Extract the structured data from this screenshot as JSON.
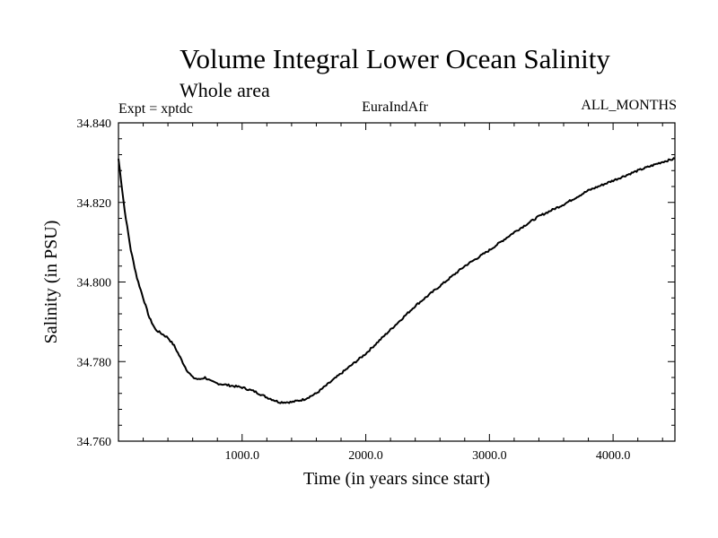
{
  "chart_data": {
    "type": "line",
    "title": "Volume Integral Lower Ocean Salinity",
    "subtitle": "Whole area",
    "left_label": "Expt = xptdc",
    "center_label": "EuraIndAfr",
    "right_label": "ALL_MONTHS",
    "xlabel": "Time (in years since start)",
    "ylabel": "Salinity (in PSU)",
    "xlim": [
      0,
      4500
    ],
    "ylim": [
      34.76,
      34.84
    ],
    "x_ticks": [
      1000,
      2000,
      3000,
      4000
    ],
    "x_tick_labels": [
      "1000.0",
      "2000.0",
      "3000.0",
      "4000.0"
    ],
    "y_ticks": [
      34.76,
      34.78,
      34.8,
      34.82,
      34.84
    ],
    "y_tick_labels": [
      "34.760",
      "34.780",
      "34.800",
      "34.820",
      "34.840"
    ],
    "grid": false,
    "series": [
      {
        "x": [
          0,
          50,
          100,
          150,
          200,
          250,
          300,
          350,
          400,
          450,
          500,
          550,
          600,
          650,
          700,
          750,
          800,
          900,
          1000,
          1100,
          1200,
          1300,
          1400,
          1500,
          1600,
          1700,
          1800,
          2000,
          2200,
          2400,
          2600,
          2800,
          3000,
          3200,
          3400,
          3600,
          3800,
          4000,
          4200,
          4400,
          4500
        ],
        "y": [
          34.831,
          34.818,
          34.808,
          34.801,
          34.796,
          34.791,
          34.788,
          34.787,
          34.786,
          34.784,
          34.781,
          34.778,
          34.776,
          34.7755,
          34.776,
          34.775,
          34.7745,
          34.774,
          34.7735,
          34.7725,
          34.771,
          34.7698,
          34.7698,
          34.7705,
          34.772,
          34.7745,
          34.777,
          34.782,
          34.788,
          34.794,
          34.799,
          34.804,
          34.808,
          34.8125,
          34.8165,
          34.8195,
          34.823,
          34.8255,
          34.828,
          34.8302,
          34.831
        ]
      }
    ]
  }
}
